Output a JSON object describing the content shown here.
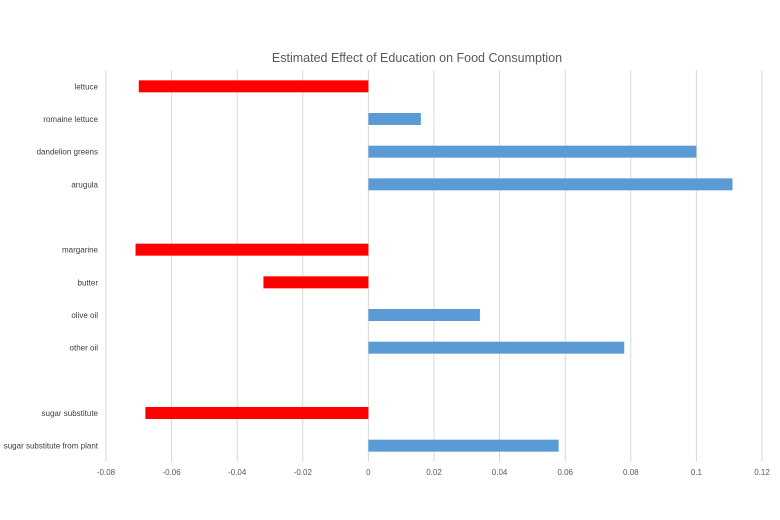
{
  "chart_data": {
    "type": "bar",
    "orientation": "horizontal",
    "title": "Estimated Effect of Education on Food Consumption",
    "xlabel": "",
    "ylabel": "",
    "xlim": [
      -0.08,
      0.12
    ],
    "xticks": [
      -0.08,
      -0.06,
      -0.04,
      -0.02,
      0,
      0.02,
      0.04,
      0.06,
      0.08,
      0.1,
      0.12
    ],
    "xtick_labels": [
      "-0.08",
      "-0.06",
      "-0.04",
      "-0.02",
      "0",
      "0.02",
      "0.04",
      "0.06",
      "0.08",
      "0.1",
      "0.12"
    ],
    "grid": true,
    "legend": "none",
    "colors": {
      "negative": "#ff0000",
      "positive": "#5b9bd5",
      "grid": "#d9d9d9",
      "text": "#595959"
    },
    "categories": [
      "lettuce",
      "romaine lettuce",
      "dandelion greens",
      "arugula",
      "",
      "margarine",
      "butter",
      "olive oil",
      "other oil",
      "",
      "sugar substitute",
      "sugar substitute from plant"
    ],
    "values": [
      -0.07,
      0.016,
      0.1,
      0.111,
      null,
      -0.071,
      -0.032,
      0.034,
      0.078,
      null,
      -0.068,
      0.058
    ]
  }
}
